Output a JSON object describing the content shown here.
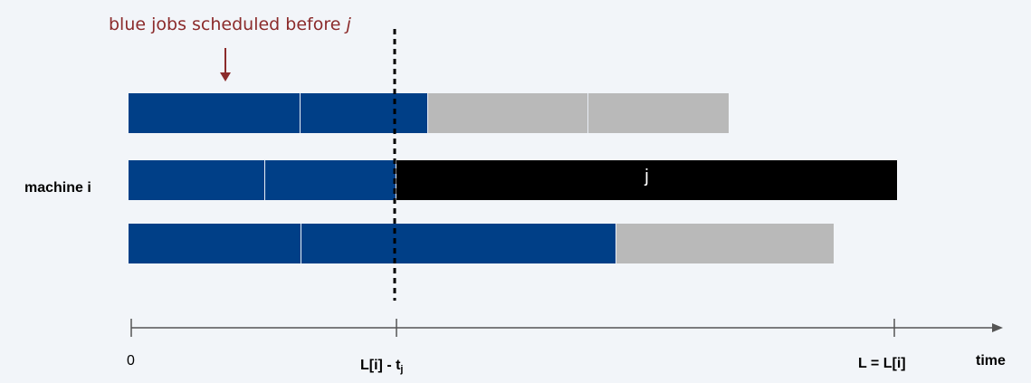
{
  "annotation": {
    "text_prefix": "blue jobs scheduled before ",
    "text_var": "j"
  },
  "machine_label": "machine i",
  "job_label": "j",
  "axis": {
    "tick_0": "0",
    "tick_mid_main": "L[i] - t",
    "tick_mid_sub": "j",
    "tick_end": "L = L[i]",
    "axis_label": "time"
  },
  "colors": {
    "blue": "#003f87",
    "gray": "#b9b9b9",
    "black": "#000000",
    "annotation": "#8b2b2b"
  }
}
